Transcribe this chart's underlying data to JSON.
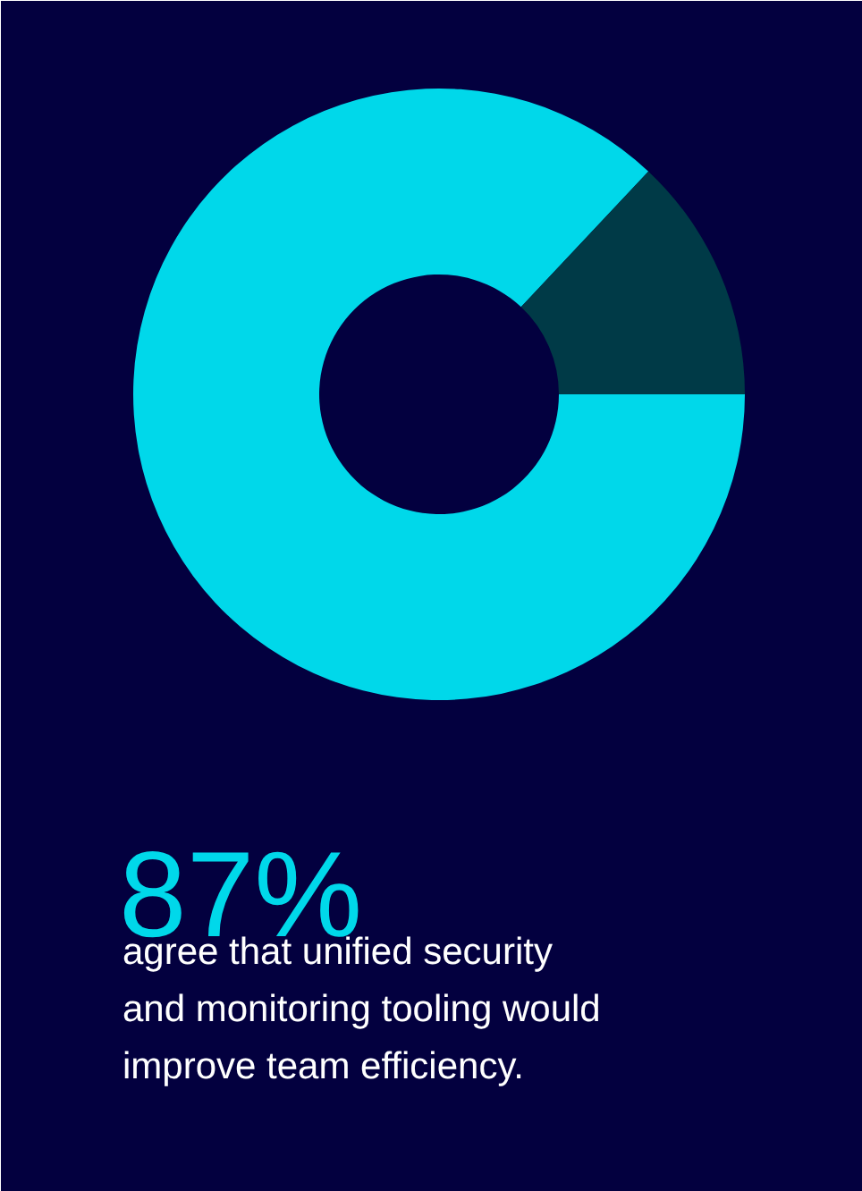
{
  "chart_data": {
    "type": "donut",
    "title": "87%",
    "subtitle": "agree that unified security and monitoring tooling would improve team efficiency.",
    "categories": [
      null,
      null
    ],
    "values": [
      87,
      13
    ],
    "colors": [
      "#00d8ea",
      "#003a47"
    ]
  }
}
